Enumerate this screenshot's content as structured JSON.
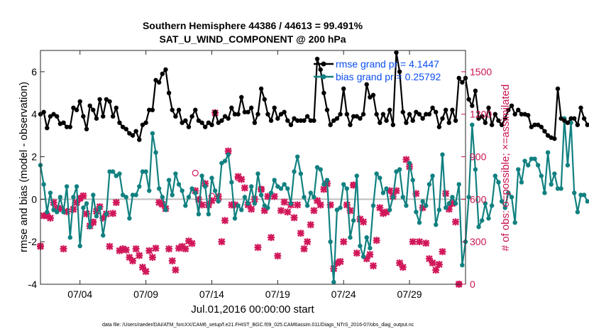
{
  "chart_data": {
    "type": "line",
    "title": "Southern Hemisphere 44386 / 44613 = 99.491%",
    "subtitle": "SAT_U_WIND_COMPONENT @ 200 hPa",
    "xlabel": "Jul.01,2016 00:00:00 start",
    "ylabel": "rmse and bias (model - observation)",
    "y2label": "# of obs: o=possible; ×=assimilated",
    "xlim": [
      1,
      33.25
    ],
    "ylim": [
      -4,
      7
    ],
    "y2lim": [
      0,
      1650
    ],
    "xticks": [
      {
        "x": 4,
        "label": "07/04"
      },
      {
        "x": 9,
        "label": "07/09"
      },
      {
        "x": 14,
        "label": "07/14"
      },
      {
        "x": 19,
        "label": "07/19"
      },
      {
        "x": 24,
        "label": "07/24"
      },
      {
        "x": 29,
        "label": "07/29"
      }
    ],
    "yticks": [
      -4,
      -2,
      0,
      2,
      4,
      6
    ],
    "y2ticks": [
      0,
      300,
      600,
      900,
      1200,
      1500
    ],
    "legend": [
      {
        "name": "rmse grand pr = 4.1447",
        "color": "#000000"
      },
      {
        "name": "bias grand pr = 0.25792",
        "color": "#118080"
      }
    ],
    "x_start": 1.0,
    "x_step": 0.25,
    "rmse": [
      4.0,
      4.1,
      3.35,
      3.9,
      4.0,
      3.9,
      3.55,
      3.6,
      3.4,
      3.4,
      4.3,
      4.2,
      4.6,
      3.9,
      3.3,
      4.4,
      4.2,
      3.8,
      4.7,
      3.9,
      4.7,
      4.6,
      3.9,
      4.3,
      3.6,
      3.4,
      3.3,
      3.1,
      3.0,
      3.2,
      2.8,
      3.5,
      3.6,
      4.2,
      4.2,
      5.6,
      5.5,
      5.9,
      6.1,
      5.0,
      4.2,
      3.9,
      4.2,
      3.6,
      3.7,
      3.4,
      3.9,
      4.2,
      3.7,
      3.6,
      3.4,
      3.6,
      3.5,
      4.1,
      3.6,
      3.7,
      3.9,
      3.8,
      4.3,
      4.0,
      4.0,
      4.8,
      4.1,
      4.1,
      4.3,
      3.6,
      4.0,
      5.2,
      4.7,
      4.0,
      3.7,
      4.3,
      3.8,
      4.0,
      4.1,
      3.7,
      3.5,
      3.8,
      3.7,
      3.7,
      3.7,
      3.9,
      3.7,
      3.7,
      6.6,
      6.1,
      5.0,
      4.2,
      3.5,
      3.7,
      3.8,
      4.0,
      5.2,
      4.0,
      3.5,
      3.9,
      3.9,
      3.8,
      4.0,
      5.4,
      4.8,
      4.9,
      4.0,
      3.6,
      4.0,
      3.7,
      4.2,
      3.5,
      6.9,
      6.0,
      4.1,
      3.6,
      4.0,
      3.7,
      4.1,
      4.0,
      3.8,
      4.0,
      4.0,
      4.3,
      4.1,
      3.4,
      3.8,
      4.2,
      3.6,
      4.2,
      3.7,
      5.7,
      5.5,
      5.7,
      4.7,
      4.4,
      5.1,
      3.8,
      3.9,
      3.6,
      4.3,
      3.5,
      4.0,
      3.7,
      3.5,
      3.8,
      4.2,
      4.4,
      4.0,
      4.2,
      4.0,
      4.0,
      3.95,
      3.4,
      3.5,
      3.5,
      3.4,
      3.2,
      3.0,
      2.9,
      2.85,
      5.2,
      3.8,
      3.7,
      3.6,
      3.8,
      3.8,
      3.5,
      4.3,
      3.8,
      3.5,
      3.5,
      4.6,
      4.0
    ],
    "bias": [
      1.6,
      0.7,
      -0.6,
      0.3,
      -0.5,
      -0.6,
      0.1,
      -0.6,
      0.6,
      -1.8,
      0.1,
      0.6,
      -2.2,
      -0.4,
      -0.2,
      -1.3,
      0.2,
      -0.8,
      -0.4,
      -1.7,
      -0.7,
      1.3,
      1.3,
      1.1,
      1.2,
      0.2,
      0.1,
      -0.9,
      0.2,
      0.2,
      0.6,
      1.3,
      1.3,
      0.4,
      3.1,
      2.2,
      0.5,
      0.1,
      -0.5,
      0.9,
      0.2,
      1.2,
      0.7,
      0.4,
      -0.3,
      0.1,
      0.5,
      0.3,
      -0.7,
      1.1,
      0.6,
      -0.7,
      1.0,
      0.4,
      -0.1,
      1.7,
      1.8,
      2.1,
      0.8,
      -0.9,
      -0.3,
      -0.5,
      0.1,
      -0.2,
      0.6,
      -0.2,
      1.2,
      0.2,
      -0.3,
      -0.4,
      0.3,
      0.9,
      0.6,
      0.5,
      0.7,
      0.5,
      -0.2,
      1.3,
      2.0,
      1.2,
      0.1,
      -0.3,
      0.3,
      0.1,
      1.5,
      1.4,
      0.7,
      0.9,
      -2.0,
      -3.9,
      -0.5,
      -0.4,
      0.7,
      0.5,
      -1.8,
      -1.0,
      1.1,
      -2.2,
      -2.7,
      -1.8,
      -2.3,
      -0.3,
      1.2,
      1.0,
      0.3,
      0.5,
      -0.5,
      0.1,
      1.3,
      1.4,
      0.1,
      -0.3,
      1.7,
      0.9,
      -0.6,
      -1.1,
      -0.1,
      -0.3,
      0.7,
      1.1,
      -1.2,
      -0.5,
      2.1,
      -0.4,
      -0.2,
      0.1,
      -0.2,
      0.7,
      -3.1,
      -2.0,
      0.1,
      3.5,
      1.4,
      -1.3,
      -1.0,
      -0.2,
      -0.9,
      -0.3,
      1.1,
      0.8,
      -0.1,
      -0.4,
      0.3,
      0.1,
      -1.1,
      1.4,
      0.8,
      1.8,
      1.6,
      1.9,
      1.9,
      1.6,
      1.1,
      0.3,
      2.2,
      0.7,
      1.2,
      0.5,
      0.5,
      3.8,
      1.6,
      3.6,
      0.3,
      -0.6,
      0.2,
      0.2,
      -0.1,
      -0.1,
      -0.1,
      -0.1,
      0.3,
      0.2
    ],
    "obs_assimilated": [
      [
        1.0,
        267
      ],
      [
        1.25,
        484
      ],
      [
        1.5,
        484
      ],
      [
        1.75,
        467
      ],
      [
        2.0,
        577
      ],
      [
        2.25,
        534
      ],
      [
        2.5,
        534
      ],
      [
        2.75,
        250
      ],
      [
        3.0,
        513
      ],
      [
        3.5,
        529
      ],
      [
        3.75,
        577
      ],
      [
        4.0,
        607
      ],
      [
        4.25,
        624
      ],
      [
        4.5,
        497
      ],
      [
        4.75,
        411
      ],
      [
        5.0,
        437
      ],
      [
        5.25,
        515
      ],
      [
        5.5,
        547
      ],
      [
        5.75,
        467
      ],
      [
        6.0,
        497
      ],
      [
        6.25,
        267
      ],
      [
        6.5,
        500
      ],
      [
        6.75,
        577
      ],
      [
        7.0,
        237
      ],
      [
        7.25,
        250
      ],
      [
        7.5,
        242
      ],
      [
        7.75,
        190
      ],
      [
        8.0,
        165
      ],
      [
        8.25,
        250
      ],
      [
        8.5,
        203
      ],
      [
        8.75,
        120
      ],
      [
        9.0,
        90
      ],
      [
        9.25,
        237
      ],
      [
        9.5,
        190
      ],
      [
        9.75,
        254
      ],
      [
        10.0,
        577
      ],
      [
        10.25,
        564
      ],
      [
        10.5,
        534
      ],
      [
        10.75,
        250
      ],
      [
        11.0,
        165
      ],
      [
        11.25,
        101
      ],
      [
        11.5,
        254
      ],
      [
        11.75,
        267
      ],
      [
        12.0,
        250
      ],
      [
        12.25,
        305
      ],
      [
        12.5,
        288
      ],
      [
        12.75,
        660
      ],
      [
        13.0,
        598
      ],
      [
        13.25,
        560
      ],
      [
        13.5,
        710
      ],
      [
        13.75,
        560
      ],
      [
        14.0,
        590
      ],
      [
        14.25,
        1210
      ],
      [
        14.5,
        620
      ],
      [
        14.75,
        300
      ],
      [
        15.0,
        450
      ],
      [
        15.25,
        940
      ],
      [
        15.5,
        560
      ],
      [
        15.75,
        560
      ],
      [
        16.0,
        760
      ],
      [
        16.25,
        740
      ],
      [
        16.5,
        680
      ],
      [
        16.75,
        560
      ],
      [
        17.0,
        530
      ],
      [
        17.25,
        600
      ],
      [
        17.5,
        260
      ],
      [
        17.75,
        670
      ],
      [
        18.0,
        520
      ],
      [
        18.25,
        620
      ],
      [
        18.5,
        330
      ],
      [
        18.75,
        620
      ],
      [
        19.0,
        200
      ],
      [
        19.25,
        520
      ],
      [
        19.5,
        580
      ],
      [
        19.75,
        510
      ],
      [
        20.0,
        560
      ],
      [
        20.25,
        470
      ],
      [
        20.5,
        560
      ],
      [
        20.75,
        360
      ],
      [
        21.0,
        250
      ],
      [
        21.25,
        300
      ],
      [
        21.5,
        420
      ],
      [
        21.75,
        520
      ],
      [
        22.0,
        590
      ],
      [
        22.25,
        560
      ],
      [
        22.5,
        670
      ],
      [
        22.75,
        710
      ],
      [
        23.0,
        560
      ],
      [
        23.25,
        110
      ],
      [
        23.5,
        150
      ],
      [
        23.75,
        160
      ],
      [
        24.0,
        300
      ],
      [
        24.25,
        560
      ],
      [
        24.5,
        520
      ],
      [
        24.75,
        700
      ],
      [
        25.0,
        220
      ],
      [
        25.25,
        460
      ],
      [
        25.5,
        440
      ],
      [
        25.75,
        180
      ],
      [
        26.0,
        210
      ],
      [
        26.25,
        130
      ],
      [
        26.5,
        310
      ],
      [
        26.75,
        540
      ],
      [
        27.0,
        500
      ],
      [
        27.25,
        510
      ],
      [
        27.5,
        660
      ],
      [
        27.75,
        620
      ],
      [
        28.0,
        660
      ],
      [
        28.25,
        150
      ],
      [
        28.5,
        120
      ],
      [
        28.75,
        880
      ],
      [
        29.0,
        830
      ],
      [
        29.25,
        300
      ],
      [
        29.5,
        640
      ],
      [
        29.75,
        300
      ],
      [
        30.0,
        540
      ],
      [
        30.25,
        290
      ],
      [
        30.5,
        180
      ],
      [
        30.75,
        150
      ],
      [
        31.0,
        100
      ],
      [
        31.25,
        140
      ],
      [
        31.5,
        230
      ],
      [
        31.75,
        640
      ],
      [
        32.0,
        530
      ],
      [
        32.25,
        570
      ],
      [
        32.5,
        440
      ],
      [
        32.75,
        0
      ]
    ],
    "obs_possible": [
      [
        1.0,
        270
      ],
      [
        4.0,
        605
      ],
      [
        5.0,
        440
      ],
      [
        12.75,
        785
      ],
      [
        14.0,
        622
      ],
      [
        14.5,
        598
      ],
      [
        16.0,
        750
      ],
      [
        17.75,
        670
      ],
      [
        24.75,
        700
      ],
      [
        32.25,
        575
      ],
      [
        32.75,
        2
      ]
    ]
  }
}
